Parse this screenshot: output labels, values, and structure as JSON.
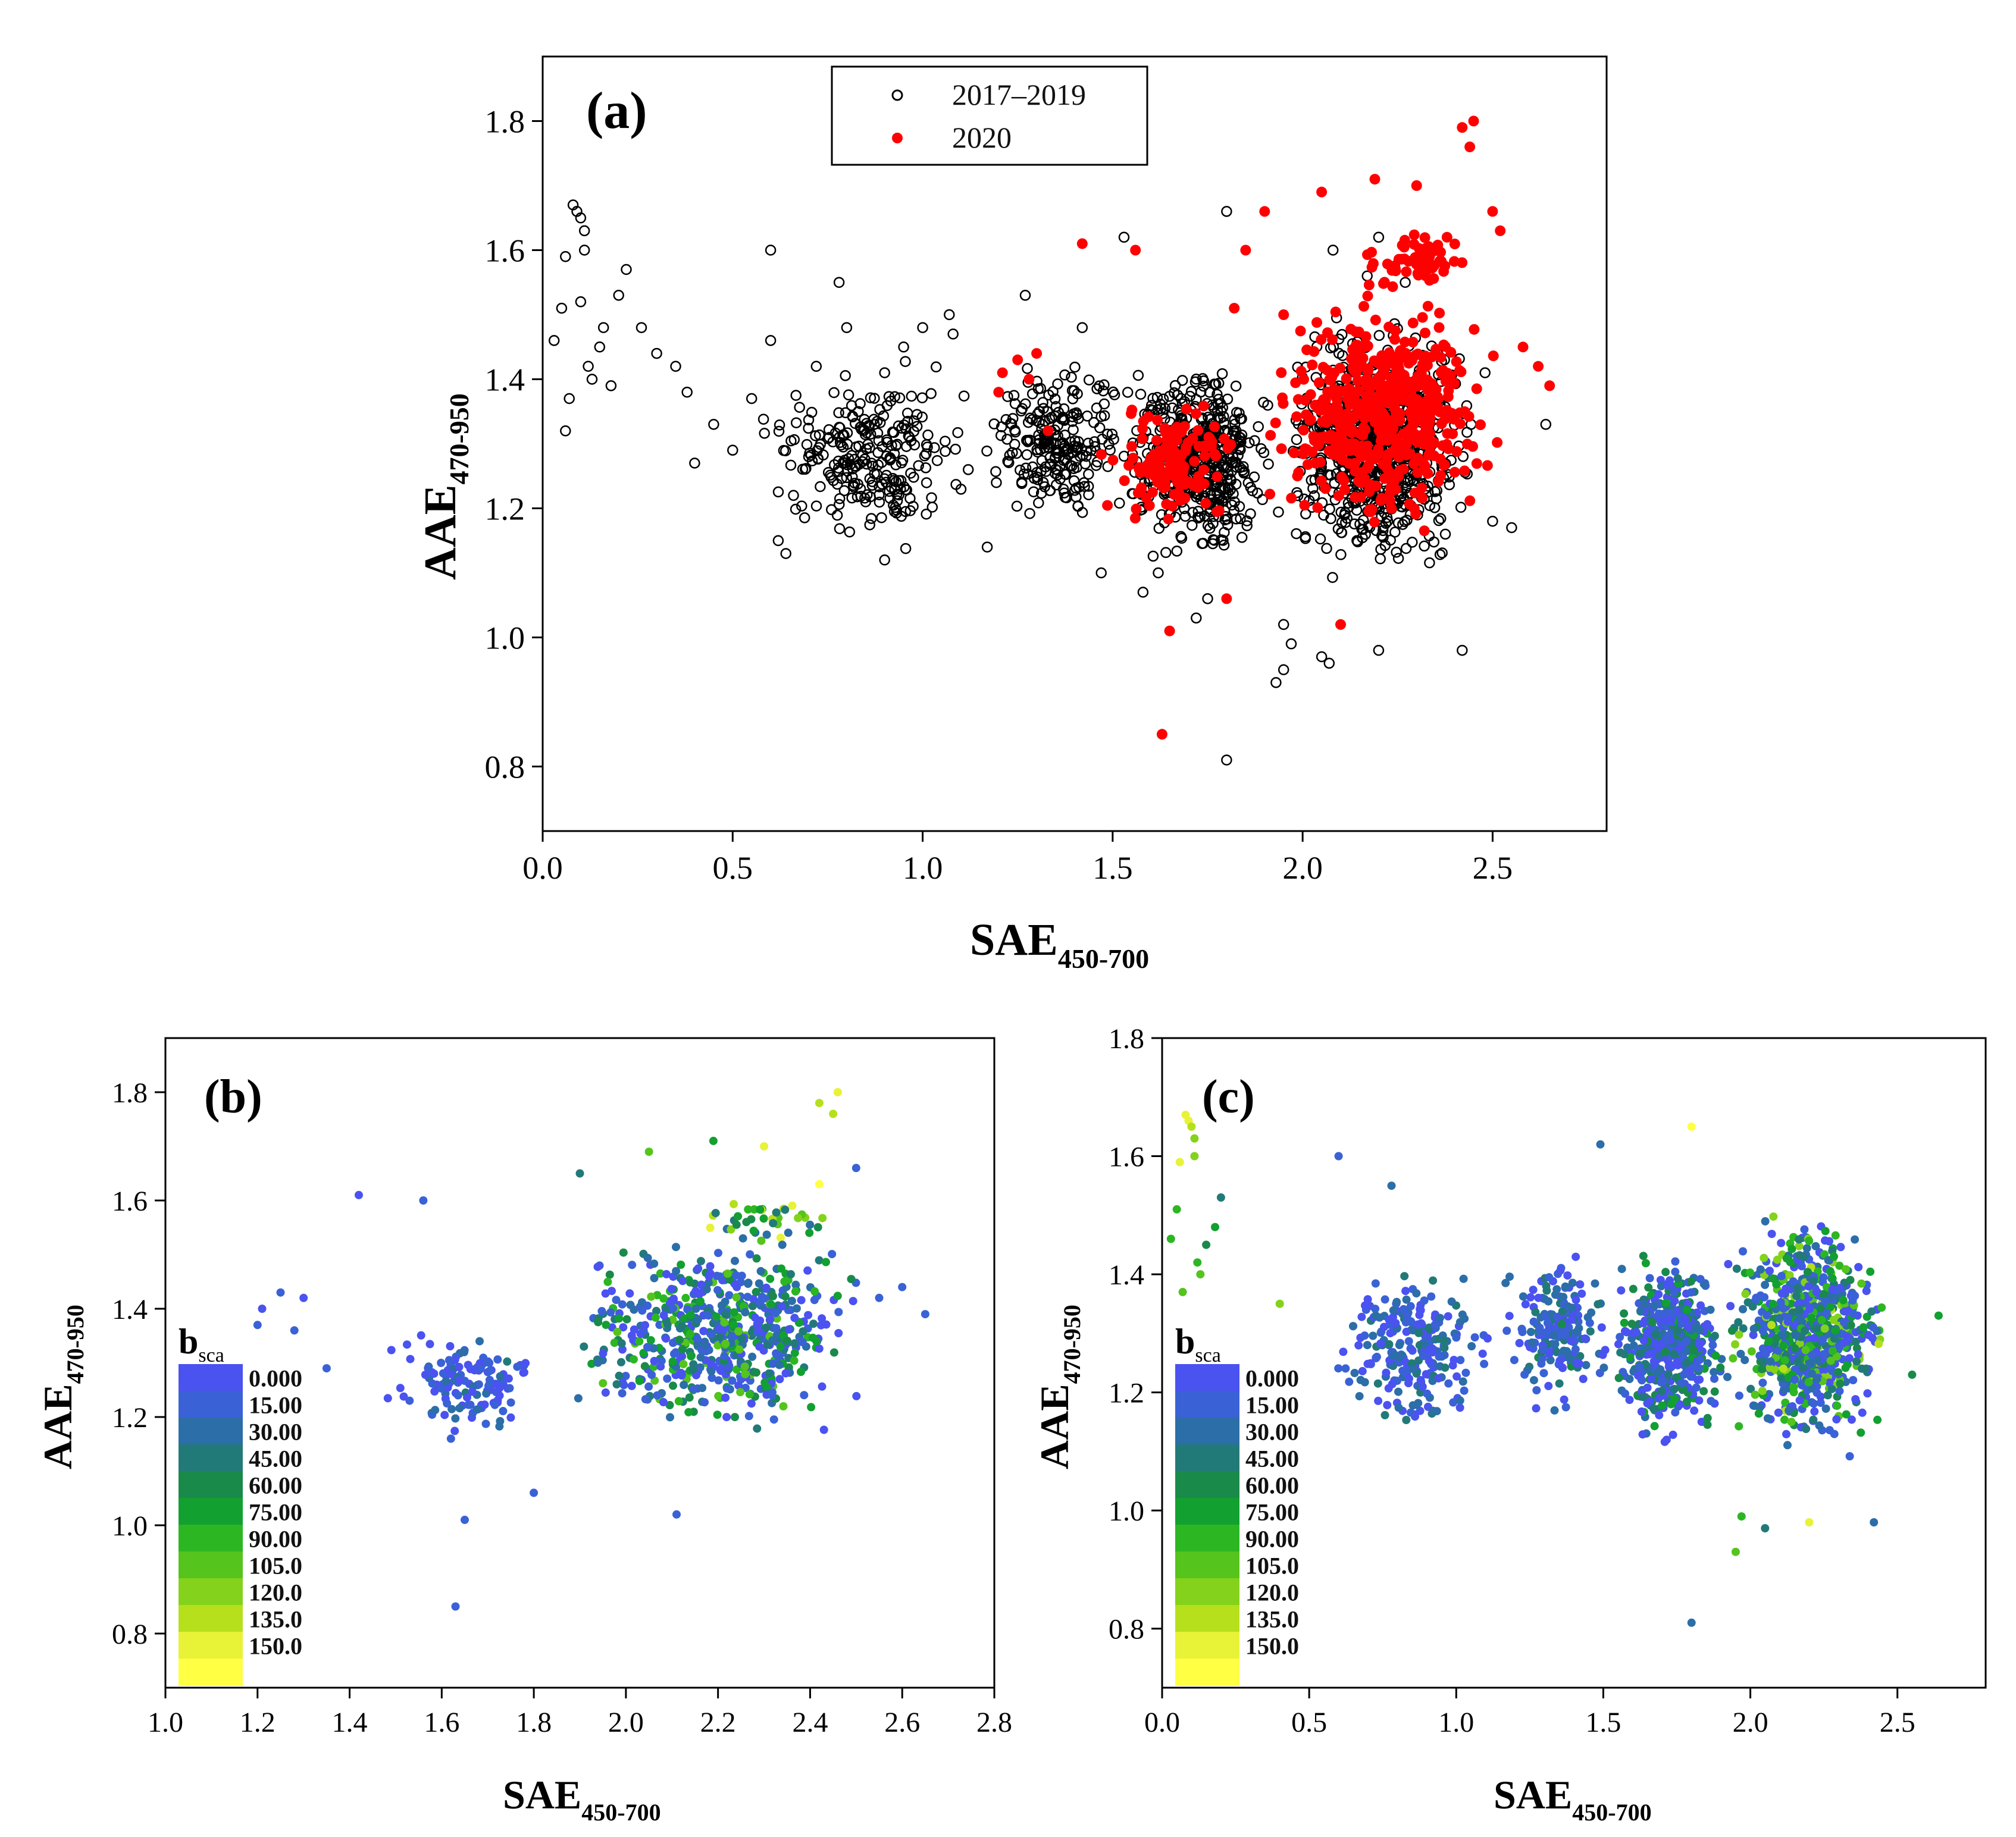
{
  "chart_data": [
    {
      "id": "a",
      "type": "scatter",
      "panel_label": "(a)",
      "xlabel": "SAE",
      "xlabel_sub": "450-700",
      "ylabel": "AAE",
      "ylabel_sub": "470-950",
      "xlim": [
        0.0,
        2.8
      ],
      "ylim": [
        0.7,
        1.9
      ],
      "xticks": [
        0.0,
        0.5,
        1.0,
        1.5,
        2.0,
        2.5
      ],
      "xtick_labels": [
        "0.0",
        "0.5",
        "1.0",
        "1.5",
        "2.0",
        "2.5"
      ],
      "yticks": [
        0.8,
        1.0,
        1.2,
        1.4,
        1.6,
        1.8
      ],
      "ytick_labels": [
        "0.8",
        "1.0",
        "1.2",
        "1.4",
        "1.6",
        "1.8"
      ],
      "legend": [
        {
          "label": "2017–2019",
          "marker": "open-circle",
          "color": "#000000"
        },
        {
          "label": "2020",
          "marker": "filled-circle",
          "color": "#ff0000"
        }
      ],
      "series": [
        {
          "name": "2017–2019",
          "marker": "open",
          "color": "#000000",
          "explicit_points": [
            [
              0.03,
              1.46
            ],
            [
              0.05,
              1.51
            ],
            [
              0.06,
              1.59
            ],
            [
              0.06,
              1.32
            ],
            [
              0.07,
              1.37
            ],
            [
              0.08,
              1.67
            ],
            [
              0.09,
              1.66
            ],
            [
              0.1,
              1.65
            ],
            [
              0.1,
              1.52
            ],
            [
              0.11,
              1.63
            ],
            [
              0.11,
              1.6
            ],
            [
              0.12,
              1.42
            ],
            [
              0.13,
              1.4
            ],
            [
              0.15,
              1.45
            ],
            [
              0.16,
              1.48
            ],
            [
              0.18,
              1.39
            ],
            [
              0.2,
              1.53
            ],
            [
              0.22,
              1.57
            ],
            [
              0.26,
              1.48
            ],
            [
              0.3,
              1.44
            ],
            [
              0.35,
              1.42
            ],
            [
              0.38,
              1.38
            ],
            [
              0.4,
              1.27
            ],
            [
              0.45,
              1.33
            ],
            [
              0.5,
              1.29
            ],
            [
              0.55,
              1.37
            ],
            [
              0.6,
              1.6
            ],
            [
              0.6,
              1.46
            ],
            [
              0.62,
              1.15
            ],
            [
              0.64,
              1.13
            ],
            [
              0.66,
              1.22
            ],
            [
              0.7,
              1.28
            ],
            [
              0.72,
              1.42
            ],
            [
              0.78,
              1.55
            ],
            [
              0.8,
              1.48
            ],
            [
              0.85,
              1.21
            ],
            [
              0.9,
              1.41
            ],
            [
              0.9,
              1.12
            ],
            [
              0.95,
              1.45
            ],
            [
              1.0,
              1.48
            ],
            [
              1.07,
              1.5
            ],
            [
              1.08,
              1.47
            ],
            [
              1.12,
              1.26
            ],
            [
              1.17,
              1.14
            ],
            [
              1.27,
              1.53
            ],
            [
              1.42,
              1.48
            ],
            [
              1.47,
              1.1
            ],
            [
              1.53,
              1.62
            ],
            [
              1.58,
              1.07
            ],
            [
              1.62,
              1.1
            ],
            [
              1.72,
              1.03
            ],
            [
              1.75,
              1.06
            ],
            [
              1.8,
              1.66
            ],
            [
              1.8,
              0.81
            ],
            [
              1.93,
              0.93
            ],
            [
              1.95,
              1.02
            ],
            [
              1.95,
              0.95
            ],
            [
              1.97,
              0.99
            ],
            [
              2.05,
              0.97
            ],
            [
              2.07,
              0.96
            ],
            [
              2.2,
              0.98
            ],
            [
              2.42,
              0.98
            ],
            [
              2.64,
              1.33
            ],
            [
              2.55,
              1.17
            ],
            [
              2.5,
              1.18
            ],
            [
              2.48,
              1.41
            ],
            [
              2.2,
              1.62
            ],
            [
              2.08,
              1.6
            ],
            [
              2.17,
              1.56
            ],
            [
              2.27,
              1.55
            ]
          ],
          "generated_clouds": [
            {
              "count": 250,
              "x_range": [
                0.55,
                1.15
              ],
              "y_range": [
                1.12,
                1.44
              ]
            },
            {
              "count": 220,
              "x_range": [
                1.15,
                1.55
              ],
              "y_range": [
                1.15,
                1.45
              ]
            },
            {
              "count": 480,
              "x_range": [
                1.5,
                1.95
              ],
              "y_range": [
                1.1,
                1.45
              ]
            },
            {
              "count": 750,
              "x_range": [
                1.9,
                2.5
              ],
              "y_range": [
                1.08,
                1.52
              ]
            }
          ]
        },
        {
          "name": "2020",
          "marker": "filled",
          "color": "#ff0000",
          "explicit_points": [
            [
              1.2,
              1.38
            ],
            [
              1.21,
              1.41
            ],
            [
              1.25,
              1.43
            ],
            [
              1.28,
              1.4
            ],
            [
              1.3,
              1.44
            ],
            [
              1.33,
              1.32
            ],
            [
              1.42,
              1.61
            ],
            [
              1.56,
              1.6
            ],
            [
              1.63,
              0.85
            ],
            [
              1.65,
              1.01
            ],
            [
              1.8,
              1.06
            ],
            [
              1.82,
              1.51
            ],
            [
              1.85,
              1.6
            ],
            [
              1.9,
              1.66
            ],
            [
              1.95,
              1.5
            ],
            [
              2.05,
              1.69
            ],
            [
              2.1,
              1.02
            ],
            [
              2.19,
              1.71
            ],
            [
              2.3,
              1.7
            ],
            [
              2.38,
              1.62
            ],
            [
              2.42,
              1.79
            ],
            [
              2.45,
              1.8
            ],
            [
              2.44,
              1.76
            ],
            [
              2.5,
              1.66
            ],
            [
              2.52,
              1.63
            ],
            [
              2.58,
              1.45
            ],
            [
              2.62,
              1.42
            ],
            [
              2.65,
              1.39
            ]
          ],
          "generated_clouds": [
            {
              "count": 140,
              "x_range": [
                1.45,
                1.85
              ],
              "y_range": [
                1.17,
                1.38
              ]
            },
            {
              "count": 520,
              "x_range": [
                1.85,
                2.55
              ],
              "y_range": [
                1.15,
                1.55
              ]
            },
            {
              "count": 60,
              "x_range": [
                2.1,
                2.5
              ],
              "y_range": [
                1.5,
                1.65
              ]
            }
          ]
        }
      ]
    },
    {
      "id": "b",
      "type": "scatter",
      "panel_label": "(b)",
      "xlabel": "SAE",
      "xlabel_sub": "450-700",
      "ylabel": "AAE",
      "ylabel_sub": "470-950",
      "xlim": [
        1.0,
        2.8
      ],
      "ylim": [
        0.7,
        1.9
      ],
      "xticks": [
        1.0,
        1.2,
        1.4,
        1.6,
        1.8,
        2.0,
        2.2,
        2.4,
        2.6,
        2.8
      ],
      "xtick_labels": [
        "1.0",
        "1.2",
        "1.4",
        "1.6",
        "1.8",
        "2.0",
        "2.2",
        "2.4",
        "2.6",
        "2.8"
      ],
      "yticks": [
        0.8,
        1.0,
        1.2,
        1.4,
        1.6,
        1.8
      ],
      "ytick_labels": [
        "0.8",
        "1.0",
        "1.2",
        "1.4",
        "1.6",
        "1.8"
      ],
      "colorbar": {
        "title": "b",
        "title_sub": "sca",
        "labels": [
          "0.000",
          "15.00",
          "30.00",
          "45.00",
          "60.00",
          "75.00",
          "90.00",
          "105.0",
          "120.0",
          "135.0",
          "150.0"
        ],
        "colors": [
          "#4a52f0",
          "#3a62d6",
          "#2c6ea8",
          "#227a78",
          "#1a8a4a",
          "#12a030",
          "#2cb622",
          "#55c41c",
          "#84d21c",
          "#b6e01c",
          "#e8f236",
          "#ffff44"
        ]
      },
      "explicit_points": [
        [
          1.2,
          1.37
        ],
        [
          1.21,
          1.4
        ],
        [
          1.25,
          1.43
        ],
        [
          1.28,
          1.36
        ],
        [
          1.3,
          1.42
        ],
        [
          1.35,
          1.29
        ],
        [
          1.42,
          1.61
        ],
        [
          1.56,
          1.6
        ],
        [
          1.62,
          1.16
        ],
        [
          1.63,
          0.85
        ],
        [
          1.65,
          1.01
        ],
        [
          1.8,
          1.06
        ],
        [
          2.11,
          1.02
        ],
        [
          2.46,
          1.8
        ],
        [
          2.42,
          1.78
        ],
        [
          2.45,
          1.76
        ],
        [
          2.3,
          1.7
        ],
        [
          2.19,
          1.71
        ],
        [
          2.05,
          1.69
        ],
        [
          1.9,
          1.65
        ],
        [
          2.5,
          1.66
        ],
        [
          2.42,
          1.63
        ],
        [
          2.65,
          1.39
        ],
        [
          2.6,
          1.44
        ],
        [
          2.55,
          1.42
        ]
      ],
      "explicit_point_values": [
        10,
        5,
        8,
        12,
        6,
        15,
        4,
        7,
        10,
        12,
        9,
        8,
        10,
        130,
        120,
        125,
        140,
        70,
        90,
        40,
        20,
        150,
        15,
        10,
        20
      ],
      "generated_clouds": [
        {
          "count": 130,
          "x_range": [
            1.45,
            1.85
          ],
          "y_range": [
            1.15,
            1.38
          ],
          "value_range": [
            0,
            35
          ]
        },
        {
          "count": 620,
          "x_range": [
            1.85,
            2.55
          ],
          "y_range": [
            1.15,
            1.55
          ],
          "value_range": [
            0,
            100
          ]
        },
        {
          "count": 40,
          "x_range": [
            2.1,
            2.5
          ],
          "y_range": [
            1.5,
            1.62
          ],
          "value_range": [
            30,
            140
          ]
        }
      ]
    },
    {
      "id": "c",
      "type": "scatter",
      "panel_label": "(c)",
      "xlabel": "SAE",
      "xlabel_sub": "450-700",
      "ylabel": "AAE",
      "ylabel_sub": "470-950",
      "xlim": [
        0.0,
        2.8
      ],
      "ylim": [
        0.7,
        1.8
      ],
      "xticks": [
        0.0,
        0.5,
        1.0,
        1.5,
        2.0,
        2.5
      ],
      "xtick_labels": [
        "0.0",
        "0.5",
        "1.0",
        "1.5",
        "2.0",
        "2.5"
      ],
      "yticks": [
        0.8,
        1.0,
        1.2,
        1.4,
        1.6,
        1.8
      ],
      "ytick_labels": [
        "0.8",
        "1.0",
        "1.2",
        "1.4",
        "1.6",
        "1.8"
      ],
      "colorbar": {
        "title": "b",
        "title_sub": "sca",
        "labels": [
          "0.000",
          "15.00",
          "30.00",
          "45.00",
          "60.00",
          "75.00",
          "90.00",
          "105.0",
          "120.0",
          "135.0",
          "150.0"
        ],
        "colors": [
          "#4a52f0",
          "#3a62d6",
          "#2c6ea8",
          "#227a78",
          "#1a8a4a",
          "#12a030",
          "#2cb622",
          "#55c41c",
          "#84d21c",
          "#b6e01c",
          "#e8f236",
          "#ffff44"
        ]
      },
      "explicit_points": [
        [
          0.03,
          1.46
        ],
        [
          0.05,
          1.51
        ],
        [
          0.06,
          1.59
        ],
        [
          0.07,
          1.37
        ],
        [
          0.08,
          1.67
        ],
        [
          0.09,
          1.66
        ],
        [
          0.1,
          1.65
        ],
        [
          0.11,
          1.63
        ],
        [
          0.11,
          1.6
        ],
        [
          0.12,
          1.42
        ],
        [
          0.13,
          1.4
        ],
        [
          0.15,
          1.45
        ],
        [
          0.18,
          1.48
        ],
        [
          0.2,
          1.53
        ],
        [
          1.49,
          1.62
        ],
        [
          1.8,
          1.65
        ],
        [
          1.8,
          0.81
        ],
        [
          1.95,
          0.93
        ],
        [
          1.97,
          0.99
        ],
        [
          2.05,
          0.97
        ],
        [
          2.2,
          0.98
        ],
        [
          2.42,
          0.98
        ],
        [
          2.64,
          1.33
        ],
        [
          2.55,
          1.23
        ],
        [
          0.6,
          1.6
        ],
        [
          0.78,
          1.55
        ],
        [
          0.4,
          1.35
        ]
      ],
      "explicit_point_values": [
        80,
        75,
        130,
        90,
        140,
        135,
        120,
        110,
        105,
        85,
        95,
        60,
        70,
        40,
        25,
        145,
        30,
        90,
        85,
        40,
        130,
        30,
        70,
        55,
        20,
        30,
        110
      ],
      "generated_clouds": [
        {
          "count": 250,
          "x_range": [
            0.55,
            1.15
          ],
          "y_range": [
            1.12,
            1.44
          ],
          "value_range": [
            0,
            40
          ]
        },
        {
          "count": 200,
          "x_range": [
            1.15,
            1.55
          ],
          "y_range": [
            1.15,
            1.45
          ],
          "value_range": [
            0,
            50
          ]
        },
        {
          "count": 480,
          "x_range": [
            1.5,
            1.95
          ],
          "y_range": [
            1.1,
            1.45
          ],
          "value_range": [
            0,
            70
          ]
        },
        {
          "count": 750,
          "x_range": [
            1.9,
            2.5
          ],
          "y_range": [
            1.08,
            1.52
          ],
          "value_range": [
            0,
            120
          ]
        }
      ]
    }
  ]
}
